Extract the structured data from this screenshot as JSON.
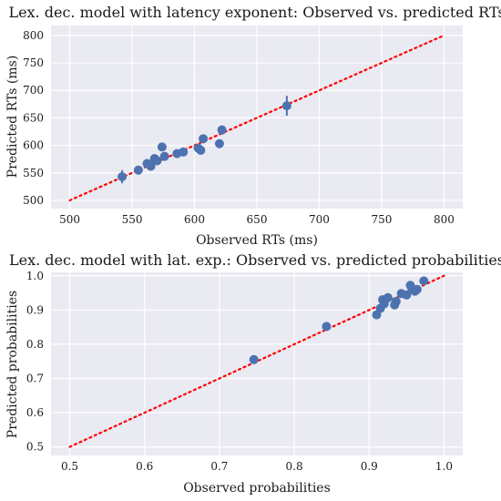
{
  "chart_data": [
    {
      "type": "scatter",
      "title": "Lex. dec. model with latency exponent: Observed vs. predicted RTs",
      "xlabel": "Observed RTs (ms)",
      "ylabel": "Predicted RTs (ms)",
      "xlim": [
        485,
        815
      ],
      "ylim": [
        485,
        818
      ],
      "xticks": [
        500,
        550,
        600,
        650,
        700,
        750,
        800
      ],
      "yticks": [
        500,
        550,
        600,
        650,
        700,
        750,
        800
      ],
      "xtick_labels": [
        "500",
        "550",
        "600",
        "650",
        "700",
        "750",
        "800"
      ],
      "ytick_labels": [
        "500",
        "550",
        "600",
        "650",
        "700",
        "750",
        "800"
      ],
      "identity_line": {
        "from": 500,
        "to": 800,
        "color": "#ff0000",
        "style": "dotted"
      },
      "grid": true,
      "marker_color": "#4c72b0",
      "points": [
        {
          "x": 542,
          "y": 543,
          "err": 12
        },
        {
          "x": 555,
          "y": 555,
          "err": 4
        },
        {
          "x": 562,
          "y": 567,
          "err": 4
        },
        {
          "x": 565,
          "y": 562,
          "err": 4
        },
        {
          "x": 568,
          "y": 576,
          "err": 4
        },
        {
          "x": 570,
          "y": 572,
          "err": 4
        },
        {
          "x": 574,
          "y": 597,
          "err": 4
        },
        {
          "x": 576,
          "y": 580,
          "err": 4
        },
        {
          "x": 586,
          "y": 585,
          "err": 4
        },
        {
          "x": 591,
          "y": 588,
          "err": 4
        },
        {
          "x": 603,
          "y": 595,
          "err": 4
        },
        {
          "x": 605,
          "y": 591,
          "err": 4
        },
        {
          "x": 607,
          "y": 612,
          "err": 4
        },
        {
          "x": 620,
          "y": 603,
          "err": 4
        },
        {
          "x": 622,
          "y": 628,
          "err": 5
        },
        {
          "x": 674,
          "y": 672,
          "err": 18
        }
      ]
    },
    {
      "type": "scatter",
      "title": "Lex. dec. model with lat. exp.: Observed vs. predicted probabilities",
      "xlabel": "Observed probabilities",
      "ylabel": "Predicted probabilities",
      "xlim": [
        0.475,
        1.025
      ],
      "ylim": [
        0.475,
        1.01
      ],
      "xticks": [
        0.5,
        0.6,
        0.7,
        0.8,
        0.9,
        1.0
      ],
      "yticks": [
        0.5,
        0.6,
        0.7,
        0.8,
        0.9,
        1.0
      ],
      "xtick_labels": [
        "0.5",
        "0.6",
        "0.7",
        "0.8",
        "0.9",
        "1.0"
      ],
      "ytick_labels": [
        "0.5",
        "0.6",
        "0.7",
        "0.8",
        "0.9",
        "1.0"
      ],
      "identity_line": {
        "from": 0.5,
        "to": 1.0,
        "color": "#ff0000",
        "style": "dotted"
      },
      "grid": true,
      "marker_color": "#4c72b0",
      "points": [
        {
          "x": 0.746,
          "y": 0.755,
          "err": 0.012
        },
        {
          "x": 0.843,
          "y": 0.852,
          "err": 0.004
        },
        {
          "x": 0.91,
          "y": 0.886,
          "err": 0.004
        },
        {
          "x": 0.915,
          "y": 0.905,
          "err": 0.004
        },
        {
          "x": 0.918,
          "y": 0.93,
          "err": 0.004
        },
        {
          "x": 0.92,
          "y": 0.918,
          "err": 0.004
        },
        {
          "x": 0.925,
          "y": 0.936,
          "err": 0.004
        },
        {
          "x": 0.934,
          "y": 0.915,
          "err": 0.004
        },
        {
          "x": 0.936,
          "y": 0.925,
          "err": 0.004
        },
        {
          "x": 0.943,
          "y": 0.948,
          "err": 0.004
        },
        {
          "x": 0.95,
          "y": 0.944,
          "err": 0.004
        },
        {
          "x": 0.955,
          "y": 0.972,
          "err": 0.004
        },
        {
          "x": 0.957,
          "y": 0.962,
          "err": 0.004
        },
        {
          "x": 0.961,
          "y": 0.955,
          "err": 0.004
        },
        {
          "x": 0.964,
          "y": 0.96,
          "err": 0.004
        },
        {
          "x": 0.973,
          "y": 0.985,
          "err": 0.004
        }
      ]
    }
  ]
}
